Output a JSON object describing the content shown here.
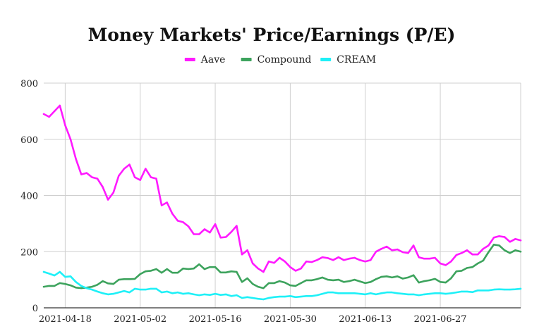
{
  "chart_data": {
    "type": "line",
    "title": "Money Markets' Price/Earnings (P/E)",
    "legend_position": "top",
    "grid": true,
    "ylim": [
      0,
      800
    ],
    "y_ticks": [
      0,
      200,
      400,
      600,
      800
    ],
    "x_ticks": [
      "2021-04-18",
      "2021-05-02",
      "2021-05-16",
      "2021-05-30",
      "2021-06-13",
      "2021-06-27"
    ],
    "x": [
      "2021-04-14",
      "2021-04-15",
      "2021-04-16",
      "2021-04-17",
      "2021-04-18",
      "2021-04-19",
      "2021-04-20",
      "2021-04-21",
      "2021-04-22",
      "2021-04-23",
      "2021-04-24",
      "2021-04-25",
      "2021-04-26",
      "2021-04-27",
      "2021-04-28",
      "2021-04-29",
      "2021-04-30",
      "2021-05-01",
      "2021-05-02",
      "2021-05-03",
      "2021-05-04",
      "2021-05-05",
      "2021-05-06",
      "2021-05-07",
      "2021-05-08",
      "2021-05-09",
      "2021-05-10",
      "2021-05-11",
      "2021-05-12",
      "2021-05-13",
      "2021-05-14",
      "2021-05-15",
      "2021-05-16",
      "2021-05-17",
      "2021-05-18",
      "2021-05-19",
      "2021-05-20",
      "2021-05-21",
      "2021-05-22",
      "2021-05-23",
      "2021-05-24",
      "2021-05-25",
      "2021-05-26",
      "2021-05-27",
      "2021-05-28",
      "2021-05-29",
      "2021-05-30",
      "2021-05-31",
      "2021-06-01",
      "2021-06-02",
      "2021-06-03",
      "2021-06-04",
      "2021-06-05",
      "2021-06-06",
      "2021-06-07",
      "2021-06-08",
      "2021-06-09",
      "2021-06-10",
      "2021-06-11",
      "2021-06-12",
      "2021-06-13",
      "2021-06-14",
      "2021-06-15",
      "2021-06-16",
      "2021-06-17",
      "2021-06-18",
      "2021-06-19",
      "2021-06-20",
      "2021-06-21",
      "2021-06-22",
      "2021-06-23",
      "2021-06-24",
      "2021-06-25",
      "2021-06-26",
      "2021-06-27",
      "2021-06-28",
      "2021-06-29",
      "2021-06-30",
      "2021-07-01",
      "2021-07-02",
      "2021-07-03",
      "2021-07-04",
      "2021-07-05",
      "2021-07-06",
      "2021-07-07",
      "2021-07-08",
      "2021-07-09",
      "2021-07-10",
      "2021-07-11",
      "2021-07-12"
    ],
    "series": [
      {
        "name": "Aave",
        "color": "#ff1aff",
        "values": [
          690,
          680,
          700,
          720,
          650,
          600,
          530,
          475,
          480,
          465,
          460,
          430,
          385,
          410,
          470,
          495,
          510,
          465,
          455,
          495,
          465,
          460,
          365,
          375,
          335,
          310,
          305,
          290,
          262,
          262,
          280,
          268,
          298,
          250,
          252,
          270,
          292,
          190,
          205,
          158,
          140,
          128,
          165,
          160,
          178,
          165,
          145,
          132,
          140,
          165,
          163,
          170,
          180,
          177,
          170,
          180,
          170,
          175,
          178,
          170,
          165,
          170,
          200,
          210,
          218,
          205,
          208,
          198,
          195,
          222,
          180,
          175,
          175,
          178,
          158,
          152,
          165,
          188,
          195,
          205,
          190,
          190,
          210,
          222,
          250,
          255,
          252,
          235,
          245,
          240
        ]
      },
      {
        "name": "Compound",
        "color": "#3da35d",
        "values": [
          75,
          78,
          78,
          88,
          85,
          80,
          72,
          70,
          72,
          75,
          82,
          95,
          87,
          85,
          100,
          102,
          102,
          103,
          120,
          130,
          132,
          138,
          125,
          138,
          125,
          125,
          140,
          138,
          140,
          155,
          138,
          145,
          145,
          126,
          126,
          130,
          128,
          92,
          105,
          85,
          75,
          70,
          88,
          88,
          95,
          90,
          80,
          78,
          88,
          98,
          98,
          102,
          108,
          100,
          98,
          100,
          92,
          95,
          100,
          94,
          88,
          92,
          102,
          110,
          112,
          108,
          112,
          104,
          108,
          116,
          90,
          95,
          98,
          103,
          92,
          90,
          105,
          130,
          132,
          142,
          145,
          158,
          168,
          198,
          225,
          222,
          205,
          195,
          205,
          200
        ]
      },
      {
        "name": "CREAM",
        "color": "#1ff0f7",
        "values": [
          128,
          122,
          115,
          128,
          110,
          112,
          92,
          78,
          70,
          65,
          58,
          52,
          48,
          50,
          55,
          60,
          55,
          68,
          65,
          65,
          68,
          68,
          55,
          58,
          52,
          55,
          50,
          52,
          48,
          45,
          48,
          46,
          50,
          46,
          48,
          42,
          45,
          35,
          38,
          35,
          32,
          30,
          35,
          38,
          40,
          40,
          42,
          38,
          40,
          42,
          42,
          45,
          50,
          55,
          55,
          52,
          52,
          52,
          52,
          50,
          48,
          52,
          48,
          52,
          55,
          55,
          52,
          50,
          48,
          48,
          45,
          48,
          50,
          52,
          52,
          50,
          52,
          55,
          58,
          58,
          56,
          62,
          62,
          62,
          65,
          66,
          65,
          65,
          66,
          68
        ]
      }
    ]
  }
}
